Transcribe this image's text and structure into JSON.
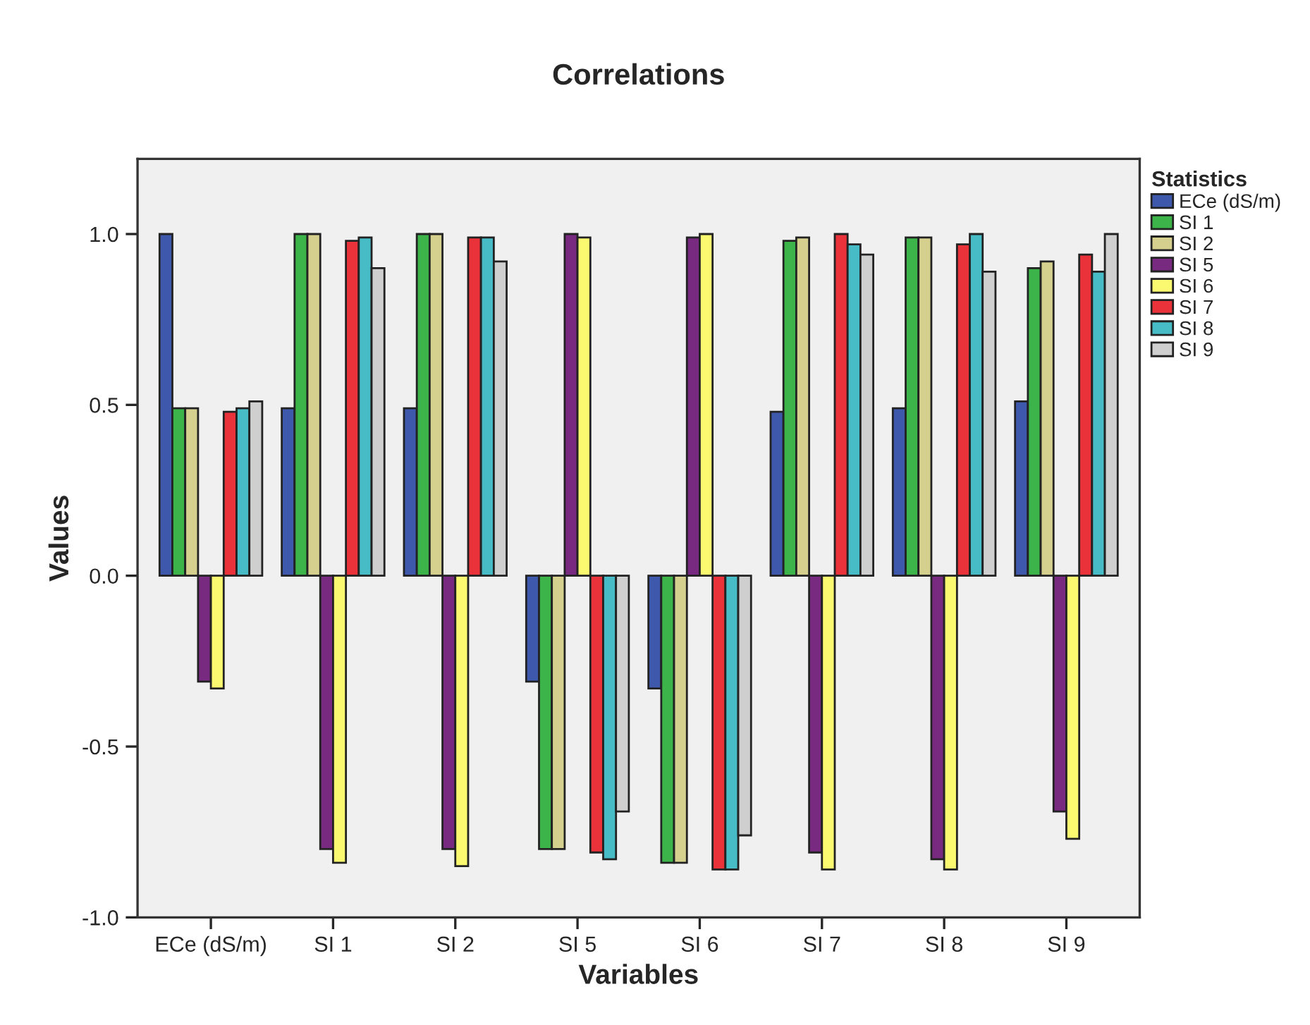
{
  "chart_data": {
    "type": "bar",
    "title": "Correlations",
    "xlabel": "Variables",
    "ylabel": "Values",
    "legend_title": "Statistics",
    "categories": [
      "ECe (dS/m)",
      "SI 1",
      "SI 2",
      "SI 5",
      "SI 6",
      "SI 7",
      "SI 8",
      "SI 9"
    ],
    "series": [
      {
        "name": "ECe (dS/m)",
        "color": "#3e58ac",
        "values": [
          1.0,
          0.49,
          0.49,
          -0.31,
          -0.33,
          0.48,
          0.49,
          0.51
        ]
      },
      {
        "name": "SI 1",
        "color": "#3cb44a",
        "values": [
          0.49,
          1.0,
          1.0,
          -0.8,
          -0.84,
          0.98,
          0.99,
          0.9
        ]
      },
      {
        "name": "SI 2",
        "color": "#d6d08f",
        "values": [
          0.49,
          1.0,
          1.0,
          -0.8,
          -0.84,
          0.99,
          0.99,
          0.92
        ]
      },
      {
        "name": "SI 5",
        "color": "#772a80",
        "values": [
          -0.31,
          -0.8,
          -0.8,
          1.0,
          0.99,
          -0.81,
          -0.83,
          -0.69
        ]
      },
      {
        "name": "SI 6",
        "color": "#fbf96f",
        "values": [
          -0.33,
          -0.84,
          -0.85,
          0.99,
          1.0,
          -0.86,
          -0.86,
          -0.77
        ]
      },
      {
        "name": "SI 7",
        "color": "#e9323a",
        "values": [
          0.48,
          0.98,
          0.99,
          -0.81,
          -0.86,
          1.0,
          0.97,
          0.94
        ]
      },
      {
        "name": "SI 8",
        "color": "#47bcc6",
        "values": [
          0.49,
          0.99,
          0.99,
          -0.83,
          -0.86,
          0.97,
          1.0,
          0.89
        ]
      },
      {
        "name": "SI 9",
        "color": "#cfcfcf",
        "values": [
          0.51,
          0.9,
          0.92,
          -0.69,
          -0.76,
          0.94,
          0.89,
          1.0
        ]
      }
    ],
    "ylim": [
      -1.0,
      1.22
    ],
    "yticks": [
      {
        "value": -1.0,
        "label": "-1.0"
      },
      {
        "value": -0.5,
        "label": "-0.5"
      },
      {
        "value": 0.0,
        "label": "0.0"
      },
      {
        "value": 0.5,
        "label": "0.5"
      },
      {
        "value": 1.0,
        "label": "1.0"
      }
    ],
    "grid": false,
    "legend": "top right"
  }
}
